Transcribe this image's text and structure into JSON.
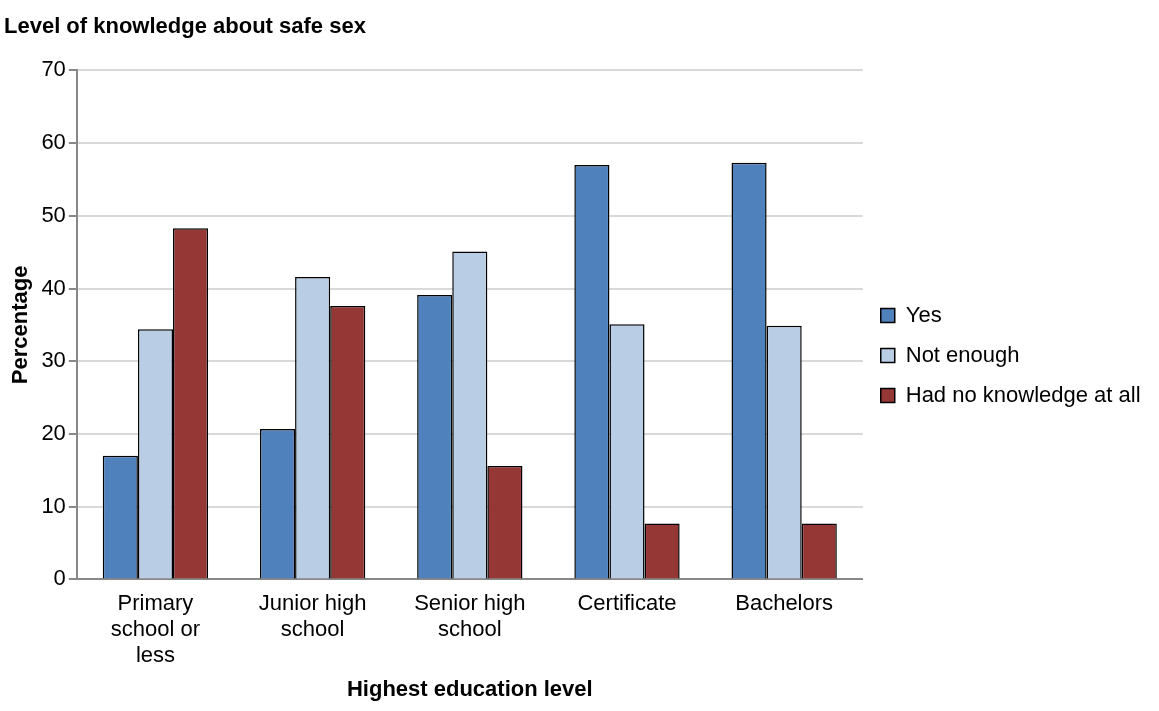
{
  "chart_data": {
    "type": "bar",
    "title": "Level of knowledge about safe sex",
    "xlabel": "Highest education level",
    "ylabel": "Percentage",
    "categories": [
      "Primary school or less",
      "Junior high school",
      "Senior high school",
      "Certificate",
      "Bachelors"
    ],
    "series": [
      {
        "name": "Yes",
        "color": "#4f81bd",
        "values": [
          17.0,
          20.7,
          39.1,
          57.0,
          57.3
        ]
      },
      {
        "name": "Not enough",
        "color": "#b9cde5",
        "values": [
          34.4,
          41.6,
          45.1,
          35.1,
          34.9
        ]
      },
      {
        "name": "Had no knowledge at all",
        "color": "#953735",
        "values": [
          48.3,
          37.6,
          15.6,
          7.7,
          7.7
        ]
      }
    ],
    "ylim": [
      0,
      70
    ],
    "yticks": [
      0,
      10,
      20,
      30,
      40,
      50,
      60,
      70
    ],
    "grid": "y",
    "legend": "right"
  }
}
